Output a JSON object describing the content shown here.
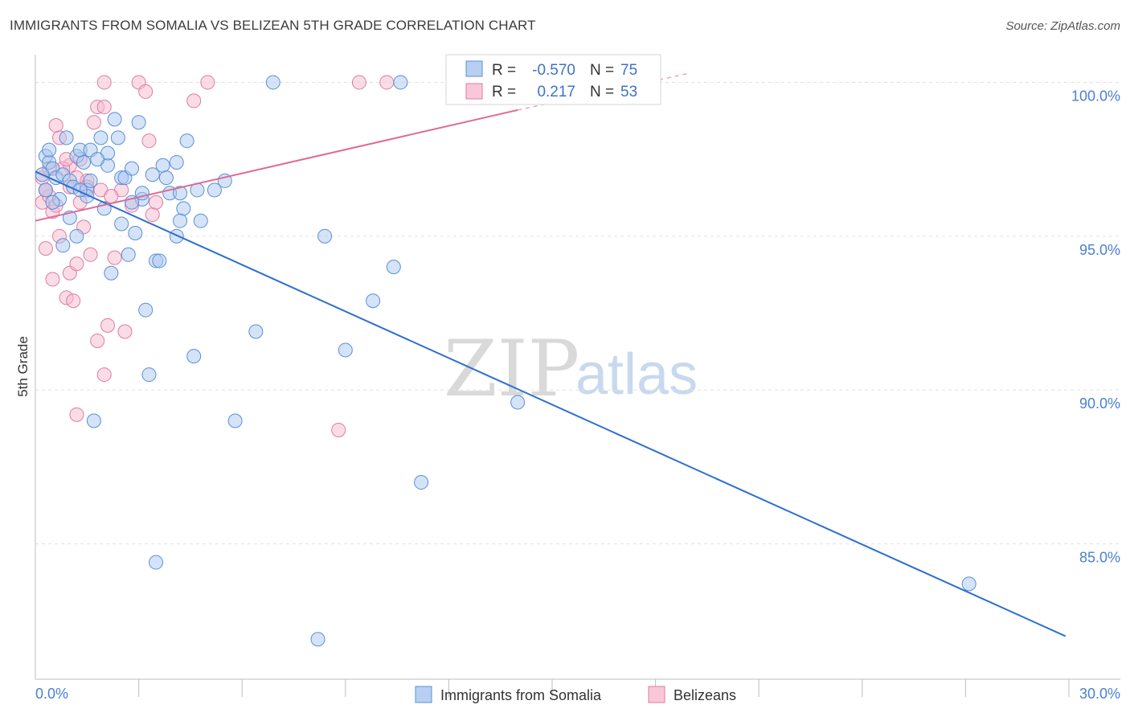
{
  "header": {
    "title": "IMMIGRANTS FROM SOMALIA VS BELIZEAN 5TH GRADE CORRELATION CHART",
    "source": "Source: ZipAtlas.com"
  },
  "watermark": {
    "zip": "ZIP",
    "atlas": "atlas"
  },
  "chart_data": {
    "type": "scatter",
    "title": "IMMIGRANTS FROM SOMALIA VS BELIZEAN 5TH GRADE CORRELATION CHART",
    "xlabel": "",
    "ylabel": "5th Grade",
    "xlim": [
      0,
      30
    ],
    "ylim": [
      80.6,
      100.9
    ],
    "x_tick_labels": [
      "0.0%",
      "30.0%"
    ],
    "y_ticks": [
      {
        "value": 85,
        "label": "85.0%"
      },
      {
        "value": 90,
        "label": "90.0%"
      },
      {
        "value": 95,
        "label": "95.0%"
      },
      {
        "value": 100,
        "label": "100.0%"
      }
    ],
    "grid": "horizontal dashed",
    "legend_position": "bottom-center",
    "stats": [
      {
        "r_label": "R =",
        "r_value": "-0.570",
        "n_label": "N =",
        "n_value": "75"
      },
      {
        "r_label": "R =",
        "r_value": "0.217",
        "n_label": "N =",
        "n_value": "53"
      }
    ],
    "series": [
      {
        "name": "Immigrants from Somalia",
        "color": "#5b8fd6",
        "fill": "#a9c7ef",
        "trend": {
          "x": [
            0.0,
            29.9
          ],
          "y": [
            97.1,
            82.0
          ]
        },
        "points": [
          [
            0.3,
            97.6
          ],
          [
            0.4,
            97.4
          ],
          [
            0.3,
            96.5
          ],
          [
            0.5,
            97.2
          ],
          [
            0.4,
            97.8
          ],
          [
            0.6,
            96.9
          ],
          [
            0.8,
            97.0
          ],
          [
            0.7,
            96.2
          ],
          [
            1.0,
            96.8
          ],
          [
            0.9,
            98.2
          ],
          [
            1.2,
            97.6
          ],
          [
            1.3,
            97.8
          ],
          [
            1.1,
            96.6
          ],
          [
            1.5,
            96.5
          ],
          [
            1.4,
            97.4
          ],
          [
            1.6,
            97.8
          ],
          [
            1.5,
            96.3
          ],
          [
            1.9,
            98.2
          ],
          [
            2.1,
            97.3
          ],
          [
            2.0,
            95.9
          ],
          [
            2.1,
            97.7
          ],
          [
            2.5,
            96.9
          ],
          [
            2.3,
            98.8
          ],
          [
            2.4,
            98.2
          ],
          [
            2.6,
            96.9
          ],
          [
            2.8,
            97.2
          ],
          [
            2.7,
            94.4
          ],
          [
            2.9,
            95.1
          ],
          [
            3.0,
            98.7
          ],
          [
            3.1,
            96.2
          ],
          [
            3.1,
            96.4
          ],
          [
            3.4,
            97.0
          ],
          [
            3.7,
            97.3
          ],
          [
            3.8,
            96.9
          ],
          [
            3.9,
            96.4
          ],
          [
            4.1,
            97.4
          ],
          [
            4.2,
            96.4
          ],
          [
            4.3,
            95.9
          ],
          [
            4.4,
            98.1
          ],
          [
            3.3,
            90.5
          ],
          [
            3.5,
            94.2
          ],
          [
            3.6,
            94.2
          ],
          [
            3.2,
            92.6
          ],
          [
            4.1,
            95.0
          ],
          [
            4.2,
            95.5
          ],
          [
            4.7,
            96.5
          ],
          [
            4.8,
            95.5
          ],
          [
            5.2,
            96.5
          ],
          [
            5.5,
            96.8
          ],
          [
            4.6,
            91.1
          ],
          [
            3.5,
            84.4
          ],
          [
            5.8,
            89.0
          ],
          [
            6.4,
            91.9
          ],
          [
            6.9,
            100.0
          ],
          [
            8.4,
            95.0
          ],
          [
            9.0,
            91.3
          ],
          [
            9.8,
            92.9
          ],
          [
            10.4,
            94.0
          ],
          [
            10.6,
            100.0
          ],
          [
            11.2,
            87.0
          ],
          [
            14.0,
            89.6
          ],
          [
            1.7,
            89.0
          ],
          [
            2.2,
            93.8
          ],
          [
            0.5,
            96.1
          ],
          [
            1.0,
            95.6
          ],
          [
            0.8,
            94.7
          ],
          [
            1.2,
            95.0
          ],
          [
            1.6,
            96.8
          ],
          [
            1.8,
            97.5
          ],
          [
            0.2,
            97.0
          ],
          [
            1.3,
            96.5
          ],
          [
            8.2,
            81.9
          ],
          [
            27.1,
            83.7
          ],
          [
            2.5,
            95.4
          ],
          [
            2.8,
            96.1
          ]
        ]
      },
      {
        "name": "Belizeans",
        "color": "#e27aa0",
        "fill": "#f5b9cf",
        "trend": {
          "x": [
            0.0,
            14.0
          ],
          "y": [
            95.5,
            99.1
          ]
        },
        "trend_dashed": {
          "x": [
            14.0,
            19.0
          ],
          "y": [
            99.1,
            100.3
          ]
        },
        "points": [
          [
            0.2,
            96.9
          ],
          [
            0.3,
            96.5
          ],
          [
            0.2,
            96.1
          ],
          [
            0.4,
            96.3
          ],
          [
            0.5,
            95.8
          ],
          [
            0.6,
            96.0
          ],
          [
            0.7,
            95.0
          ],
          [
            0.3,
            94.6
          ],
          [
            0.5,
            93.6
          ],
          [
            0.9,
            93.0
          ],
          [
            1.0,
            93.8
          ],
          [
            1.2,
            94.1
          ],
          [
            1.1,
            92.9
          ],
          [
            1.4,
            95.3
          ],
          [
            1.2,
            96.9
          ],
          [
            1.5,
            96.8
          ],
          [
            1.0,
            97.3
          ],
          [
            1.3,
            96.1
          ],
          [
            0.8,
            97.2
          ],
          [
            0.6,
            98.6
          ],
          [
            0.7,
            98.2
          ],
          [
            0.9,
            97.5
          ],
          [
            1.3,
            97.5
          ],
          [
            1.7,
            98.7
          ],
          [
            1.8,
            99.2
          ],
          [
            1.9,
            96.5
          ],
          [
            2.0,
            99.2
          ],
          [
            1.6,
            94.4
          ],
          [
            1.8,
            91.6
          ],
          [
            2.0,
            90.5
          ],
          [
            2.1,
            92.1
          ],
          [
            2.3,
            94.3
          ],
          [
            2.6,
            91.9
          ],
          [
            2.5,
            96.5
          ],
          [
            2.8,
            96.0
          ],
          [
            3.0,
            100.0
          ],
          [
            3.2,
            99.7
          ],
          [
            3.3,
            98.1
          ],
          [
            3.4,
            95.7
          ],
          [
            3.5,
            96.1
          ],
          [
            2.0,
            100.0
          ],
          [
            5.0,
            100.0
          ],
          [
            4.6,
            99.4
          ],
          [
            8.8,
            88.7
          ],
          [
            9.4,
            100.0
          ],
          [
            10.2,
            100.0
          ],
          [
            12.4,
            99.7
          ],
          [
            1.2,
            89.2
          ],
          [
            0.4,
            97.2
          ],
          [
            0.3,
            96.5
          ],
          [
            1.0,
            96.6
          ],
          [
            1.5,
            96.6
          ],
          [
            2.2,
            96.3
          ]
        ]
      }
    ]
  }
}
